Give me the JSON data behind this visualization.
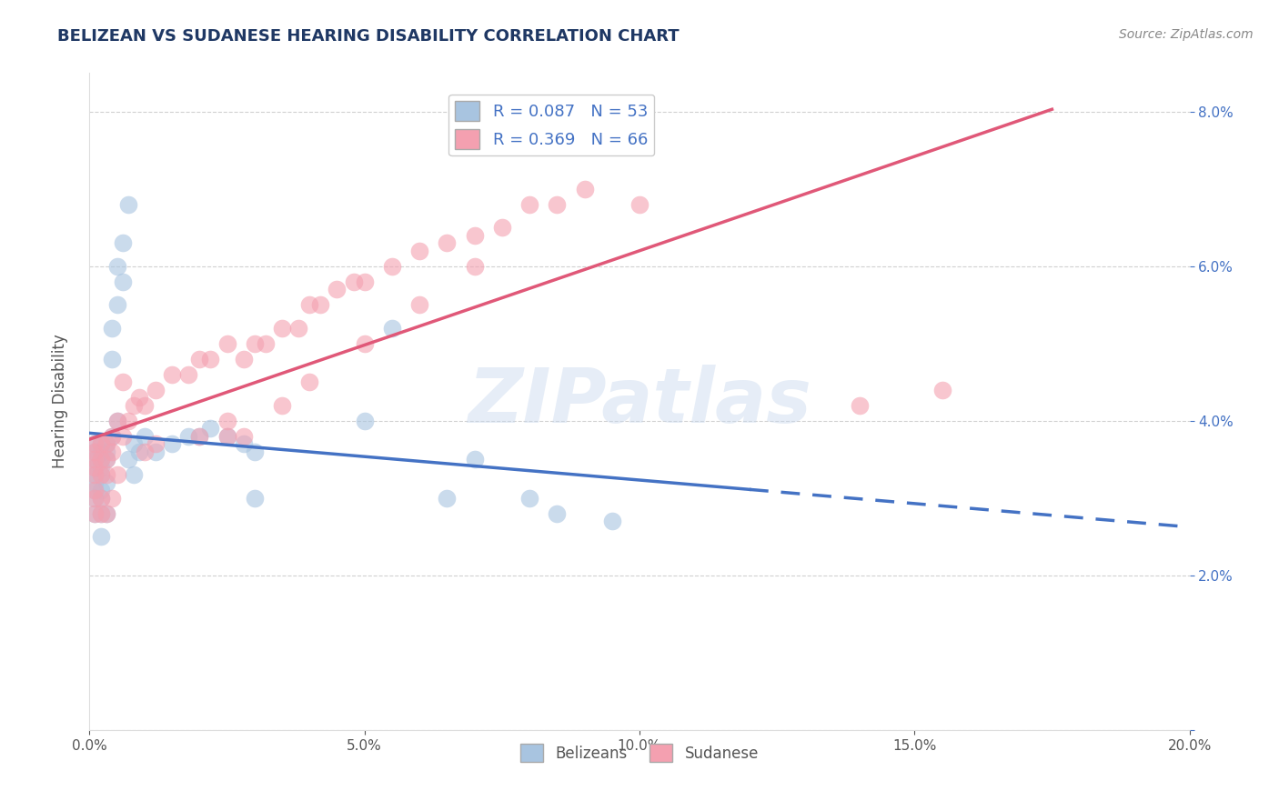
{
  "title": "BELIZEAN VS SUDANESE HEARING DISABILITY CORRELATION CHART",
  "source": "Source: ZipAtlas.com",
  "ylabel": "Hearing Disability",
  "watermark": "ZIPatlas",
  "xlim": [
    0.0,
    0.2
  ],
  "ylim": [
    0.0,
    0.085
  ],
  "xticks": [
    0.0,
    0.05,
    0.1,
    0.15,
    0.2
  ],
  "xtick_labels": [
    "0.0%",
    "5.0%",
    "10.0%",
    "15.0%",
    "20.0%"
  ],
  "yticks": [
    0.0,
    0.02,
    0.04,
    0.06,
    0.08
  ],
  "ytick_labels": [
    "",
    "2.0%",
    "4.0%",
    "6.0%",
    "8.0%"
  ],
  "belizean_R": 0.087,
  "belizean_N": 53,
  "sudanese_R": 0.369,
  "sudanese_N": 66,
  "belizean_color": "#a8c4e0",
  "sudanese_color": "#f4a0b0",
  "belizean_line_color": "#4472C4",
  "sudanese_line_color": "#e05878",
  "title_color": "#1f3864",
  "tick_color": "#4472C4",
  "belizean_line_solid_end": 0.12,
  "sudanese_line_solid_end": 0.175,
  "belizean_x": [
    0.001,
    0.001,
    0.001,
    0.001,
    0.001,
    0.001,
    0.001,
    0.001,
    0.001,
    0.002,
    0.002,
    0.002,
    0.002,
    0.002,
    0.002,
    0.002,
    0.002,
    0.002,
    0.003,
    0.003,
    0.003,
    0.003,
    0.003,
    0.004,
    0.004,
    0.004,
    0.005,
    0.005,
    0.005,
    0.006,
    0.006,
    0.007,
    0.007,
    0.008,
    0.008,
    0.009,
    0.01,
    0.012,
    0.015,
    0.018,
    0.02,
    0.022,
    0.025,
    0.028,
    0.03,
    0.03,
    0.05,
    0.055,
    0.065,
    0.07,
    0.08,
    0.085,
    0.095
  ],
  "belizean_y": [
    0.037,
    0.036,
    0.035,
    0.034,
    0.033,
    0.032,
    0.031,
    0.03,
    0.028,
    0.037,
    0.036,
    0.035,
    0.034,
    0.033,
    0.031,
    0.03,
    0.028,
    0.025,
    0.037,
    0.036,
    0.035,
    0.032,
    0.028,
    0.052,
    0.048,
    0.038,
    0.06,
    0.055,
    0.04,
    0.063,
    0.058,
    0.068,
    0.035,
    0.037,
    0.033,
    0.036,
    0.038,
    0.036,
    0.037,
    0.038,
    0.038,
    0.039,
    0.038,
    0.037,
    0.036,
    0.03,
    0.04,
    0.052,
    0.03,
    0.035,
    0.03,
    0.028,
    0.027
  ],
  "sudanese_x": [
    0.001,
    0.001,
    0.001,
    0.001,
    0.001,
    0.001,
    0.001,
    0.001,
    0.002,
    0.002,
    0.002,
    0.002,
    0.002,
    0.003,
    0.003,
    0.003,
    0.003,
    0.004,
    0.004,
    0.004,
    0.005,
    0.005,
    0.006,
    0.006,
    0.007,
    0.008,
    0.009,
    0.01,
    0.012,
    0.015,
    0.018,
    0.02,
    0.022,
    0.025,
    0.025,
    0.028,
    0.03,
    0.032,
    0.035,
    0.038,
    0.04,
    0.042,
    0.045,
    0.048,
    0.05,
    0.055,
    0.06,
    0.065,
    0.07,
    0.075,
    0.08,
    0.085,
    0.09,
    0.1,
    0.01,
    0.012,
    0.02,
    0.025,
    0.028,
    0.035,
    0.04,
    0.05,
    0.06,
    0.07,
    0.14,
    0.155
  ],
  "sudanese_y": [
    0.037,
    0.036,
    0.035,
    0.034,
    0.033,
    0.031,
    0.03,
    0.028,
    0.037,
    0.035,
    0.033,
    0.03,
    0.028,
    0.037,
    0.035,
    0.033,
    0.028,
    0.038,
    0.036,
    0.03,
    0.04,
    0.033,
    0.045,
    0.038,
    0.04,
    0.042,
    0.043,
    0.042,
    0.044,
    0.046,
    0.046,
    0.048,
    0.048,
    0.05,
    0.038,
    0.048,
    0.05,
    0.05,
    0.052,
    0.052,
    0.055,
    0.055,
    0.057,
    0.058,
    0.058,
    0.06,
    0.062,
    0.063,
    0.064,
    0.065,
    0.068,
    0.068,
    0.07,
    0.068,
    0.036,
    0.037,
    0.038,
    0.04,
    0.038,
    0.042,
    0.045,
    0.05,
    0.055,
    0.06,
    0.042,
    0.044
  ]
}
